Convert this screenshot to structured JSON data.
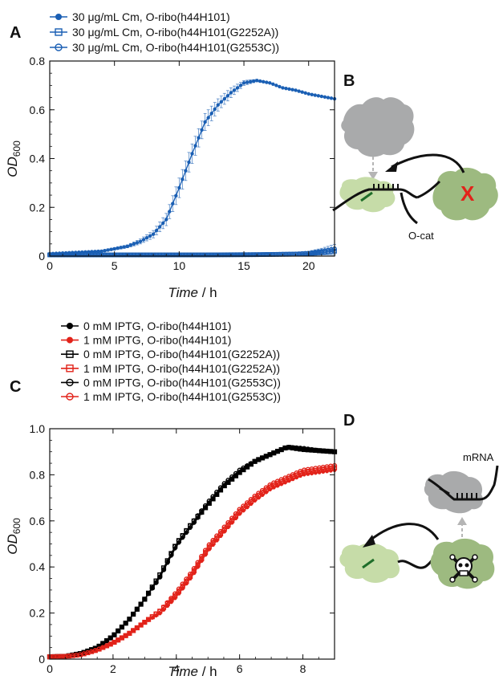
{
  "panel_letters": {
    "a": "A",
    "b": "B",
    "c": "C",
    "d": "D"
  },
  "colors": {
    "blue": "#1a5fb4",
    "black": "#000000",
    "red": "#e2231a",
    "cell_gray": "#a9aaab",
    "cell_green_light": "#c6dca8",
    "cell_green_dark": "#9dba80",
    "green_mark": "#1f6e2a",
    "cross": "#e2231a"
  },
  "chart_data": [
    {
      "type": "line",
      "panel": "A",
      "xlabel_italic": "Time",
      "xlabel_unit": " / h",
      "ylabel_main": "OD",
      "ylabel_sub": "600",
      "xlim": [
        0,
        22
      ],
      "ylim": [
        0,
        0.8
      ],
      "xticks": [
        0,
        5,
        10,
        15,
        20
      ],
      "yticks": [
        0,
        0.2,
        0.4,
        0.6,
        0.8
      ],
      "xtick_labels": [
        "0",
        "5",
        "10",
        "15",
        "20"
      ],
      "ytick_labels": [
        "0",
        "0.2",
        "0.4",
        "0.6",
        "0.8"
      ],
      "legend_position": "top-left outside",
      "series": [
        {
          "name": "30 μg/mL Cm, O-ribo(h44H101)",
          "marker": "filled-circle",
          "color": "#1a5fb4",
          "x": [
            0,
            2,
            4,
            6,
            7,
            8,
            9,
            10,
            11,
            12,
            13,
            14,
            15,
            16,
            17,
            18,
            19,
            20,
            21,
            22
          ],
          "y": [
            0.01,
            0.015,
            0.02,
            0.04,
            0.06,
            0.09,
            0.15,
            0.28,
            0.42,
            0.55,
            0.62,
            0.67,
            0.71,
            0.72,
            0.71,
            0.69,
            0.68,
            0.665,
            0.655,
            0.645
          ],
          "err": [
            0.002,
            0.003,
            0.004,
            0.006,
            0.01,
            0.015,
            0.025,
            0.04,
            0.04,
            0.035,
            0.025,
            0.02,
            0.01,
            0.005,
            0.0,
            0.0,
            0.0,
            0.0,
            0.0,
            0.0
          ]
        },
        {
          "name": "30 μg/mL Cm, O-ribo(h44H101(G2252A))",
          "marker": "open-square",
          "color": "#1a5fb4",
          "x": [
            0,
            4,
            8,
            12,
            16,
            19,
            20,
            21,
            22
          ],
          "y": [
            0.005,
            0.005,
            0.005,
            0.005,
            0.006,
            0.008,
            0.01,
            0.015,
            0.02
          ],
          "err": [
            0.003,
            0.003,
            0.003,
            0.003,
            0.004,
            0.006,
            0.008,
            0.01,
            0.015
          ]
        },
        {
          "name": "30 μg/mL Cm, O-ribo(h44H101(G2553C))",
          "marker": "open-circle",
          "color": "#1a5fb4",
          "x": [
            0,
            4,
            8,
            12,
            16,
            19,
            20,
            21,
            22
          ],
          "y": [
            0.005,
            0.005,
            0.005,
            0.005,
            0.006,
            0.009,
            0.012,
            0.02,
            0.03
          ],
          "err": [
            0.003,
            0.003,
            0.003,
            0.003,
            0.004,
            0.006,
            0.008,
            0.012,
            0.018
          ]
        }
      ]
    },
    {
      "type": "line",
      "panel": "C",
      "xlabel_italic": "Time",
      "xlabel_unit": " / h",
      "ylabel_main": "OD",
      "ylabel_sub": "600",
      "xlim": [
        0,
        9
      ],
      "ylim": [
        0,
        1.0
      ],
      "xticks": [
        0,
        2,
        4,
        6,
        8
      ],
      "yticks": [
        0,
        0.2,
        0.4,
        0.6,
        0.8,
        1.0
      ],
      "xtick_labels": [
        "0",
        "2",
        "4",
        "6",
        "8"
      ],
      "ytick_labels": [
        "0",
        "0.2",
        "0.4",
        "0.6",
        "0.8",
        "1.0"
      ],
      "legend_position": "top-left outside",
      "series": [
        {
          "name": "0 mM IPTG, O-ribo(h44H101)",
          "marker": "filled-circle",
          "color": "#000000",
          "x": [
            0,
            0.5,
            1,
            1.5,
            2,
            2.5,
            3,
            3.5,
            4,
            4.5,
            5,
            5.5,
            6,
            6.5,
            7,
            7.5,
            8,
            8.5,
            9
          ],
          "y": [
            0.01,
            0.012,
            0.025,
            0.05,
            0.1,
            0.17,
            0.26,
            0.36,
            0.49,
            0.58,
            0.67,
            0.75,
            0.81,
            0.86,
            0.89,
            0.92,
            0.91,
            0.905,
            0.9
          ]
        },
        {
          "name": "1 mM IPTG, O-ribo(h44H101)",
          "marker": "filled-circle",
          "color": "#e2231a",
          "x": [
            0,
            0.5,
            1,
            1.5,
            2,
            2.5,
            3,
            3.5,
            4,
            4.5,
            5,
            5.5,
            6,
            6.5,
            7,
            7.5,
            8,
            8.5,
            9
          ],
          "y": [
            0.01,
            0.012,
            0.02,
            0.04,
            0.07,
            0.11,
            0.16,
            0.2,
            0.27,
            0.36,
            0.47,
            0.55,
            0.63,
            0.69,
            0.74,
            0.77,
            0.8,
            0.81,
            0.82
          ]
        },
        {
          "name": "0 mM IPTG, O-ribo(h44H101(G2252A))",
          "marker": "open-square",
          "color": "#000000",
          "x": [
            0,
            0.5,
            1,
            1.5,
            2,
            2.5,
            3,
            3.5,
            4,
            4.5,
            5,
            5.5,
            6,
            6.5,
            7,
            7.5,
            8,
            8.5,
            9
          ],
          "y": [
            0.01,
            0.012,
            0.025,
            0.05,
            0.1,
            0.17,
            0.26,
            0.37,
            0.5,
            0.59,
            0.67,
            0.75,
            0.81,
            0.86,
            0.89,
            0.92,
            0.91,
            0.905,
            0.9
          ]
        },
        {
          "name": "1 mM IPTG, O-ribo(h44H101(G2252A))",
          "marker": "open-square",
          "color": "#e2231a",
          "x": [
            0,
            0.5,
            1,
            1.5,
            2,
            2.5,
            3,
            3.5,
            4,
            4.5,
            5,
            5.5,
            6,
            6.5,
            7,
            7.5,
            8,
            8.5,
            9
          ],
          "y": [
            0.01,
            0.012,
            0.02,
            0.04,
            0.07,
            0.11,
            0.16,
            0.21,
            0.28,
            0.37,
            0.48,
            0.56,
            0.64,
            0.7,
            0.75,
            0.78,
            0.81,
            0.82,
            0.83
          ]
        },
        {
          "name": "0 mM IPTG, O-ribo(h44H101(G2553C))",
          "marker": "open-circle",
          "color": "#000000",
          "x": [
            0,
            0.5,
            1,
            1.5,
            2,
            2.5,
            3,
            3.5,
            4,
            4.5,
            5,
            5.5,
            6,
            6.5,
            7,
            7.5,
            8,
            8.5,
            9
          ],
          "y": [
            0.01,
            0.012,
            0.025,
            0.05,
            0.1,
            0.17,
            0.26,
            0.36,
            0.5,
            0.59,
            0.68,
            0.76,
            0.82,
            0.86,
            0.89,
            0.92,
            0.915,
            0.905,
            0.9
          ]
        },
        {
          "name": "1 mM IPTG, O-ribo(h44H101(G2553C))",
          "marker": "open-circle",
          "color": "#e2231a",
          "x": [
            0,
            0.5,
            1,
            1.5,
            2,
            2.5,
            3,
            3.5,
            4,
            4.5,
            5,
            5.5,
            6,
            6.5,
            7,
            7.5,
            8,
            8.5,
            9
          ],
          "y": [
            0.01,
            0.012,
            0.02,
            0.04,
            0.07,
            0.11,
            0.16,
            0.21,
            0.29,
            0.38,
            0.49,
            0.57,
            0.65,
            0.71,
            0.76,
            0.79,
            0.82,
            0.83,
            0.84
          ]
        }
      ]
    }
  ],
  "diagram_b": {
    "label": "O-cat"
  },
  "diagram_d": {
    "label": "mRNA"
  }
}
